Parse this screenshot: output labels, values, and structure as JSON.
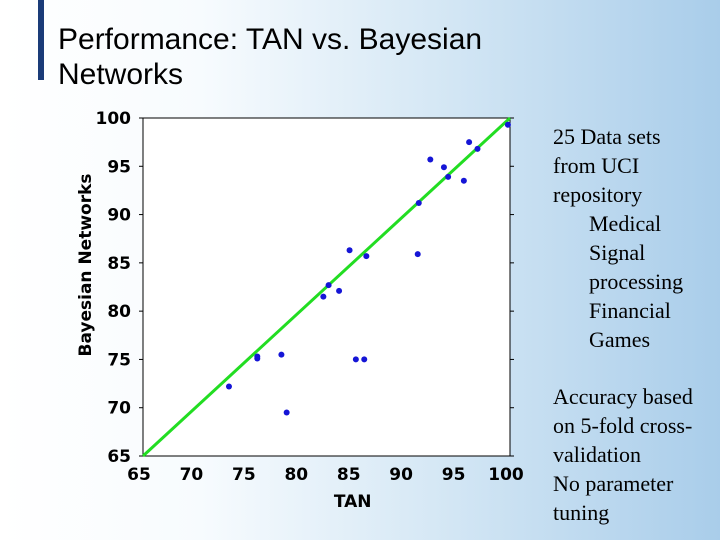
{
  "slide": {
    "title_lines": [
      "Performance: TAN vs. Bayesian",
      "Networks"
    ]
  },
  "notes": {
    "block1": [
      "25 Data sets",
      "from UCI",
      "repository"
    ],
    "block1_sub": [
      "Medical",
      "Signal",
      "processing",
      "Financial",
      "Games"
    ],
    "block2": [
      "Accuracy based",
      "on 5-fold cross-",
      "validation",
      "No parameter",
      "tuning"
    ]
  },
  "colors": {
    "accent_bar": "#1a3b78",
    "points": "#1515d6",
    "diagonal": "#22dd22"
  },
  "chart_data": {
    "type": "scatter",
    "xlabel": "TAN",
    "ylabel": "Bayesian Networks",
    "xlim": [
      65,
      100
    ],
    "ylim": [
      65,
      100
    ],
    "x_ticks": [
      "65",
      "70",
      "75",
      "80",
      "85",
      "90",
      "95",
      "100"
    ],
    "y_ticks": [
      "65",
      "70",
      "75",
      "80",
      "85",
      "90",
      "95",
      "100"
    ],
    "grid": false,
    "reference_line": [
      [
        65,
        65
      ],
      [
        100,
        100
      ]
    ],
    "points": [
      [
        73.2,
        72.2
      ],
      [
        75.9,
        75.1
      ],
      [
        75.9,
        75.3
      ],
      [
        78.2,
        75.5
      ],
      [
        78.7,
        69.5
      ],
      [
        82.2,
        81.5
      ],
      [
        82.7,
        82.7
      ],
      [
        83.7,
        82.1
      ],
      [
        84.7,
        86.3
      ],
      [
        85.3,
        75.0
      ],
      [
        86.1,
        75.0
      ],
      [
        86.3,
        85.7
      ],
      [
        91.2,
        85.9
      ],
      [
        91.3,
        91.2
      ],
      [
        92.4,
        95.7
      ],
      [
        93.7,
        94.9
      ],
      [
        94.1,
        93.9
      ],
      [
        95.6,
        93.5
      ],
      [
        96.1,
        97.5
      ],
      [
        96.9,
        96.8
      ],
      [
        99.8,
        99.3
      ]
    ]
  }
}
